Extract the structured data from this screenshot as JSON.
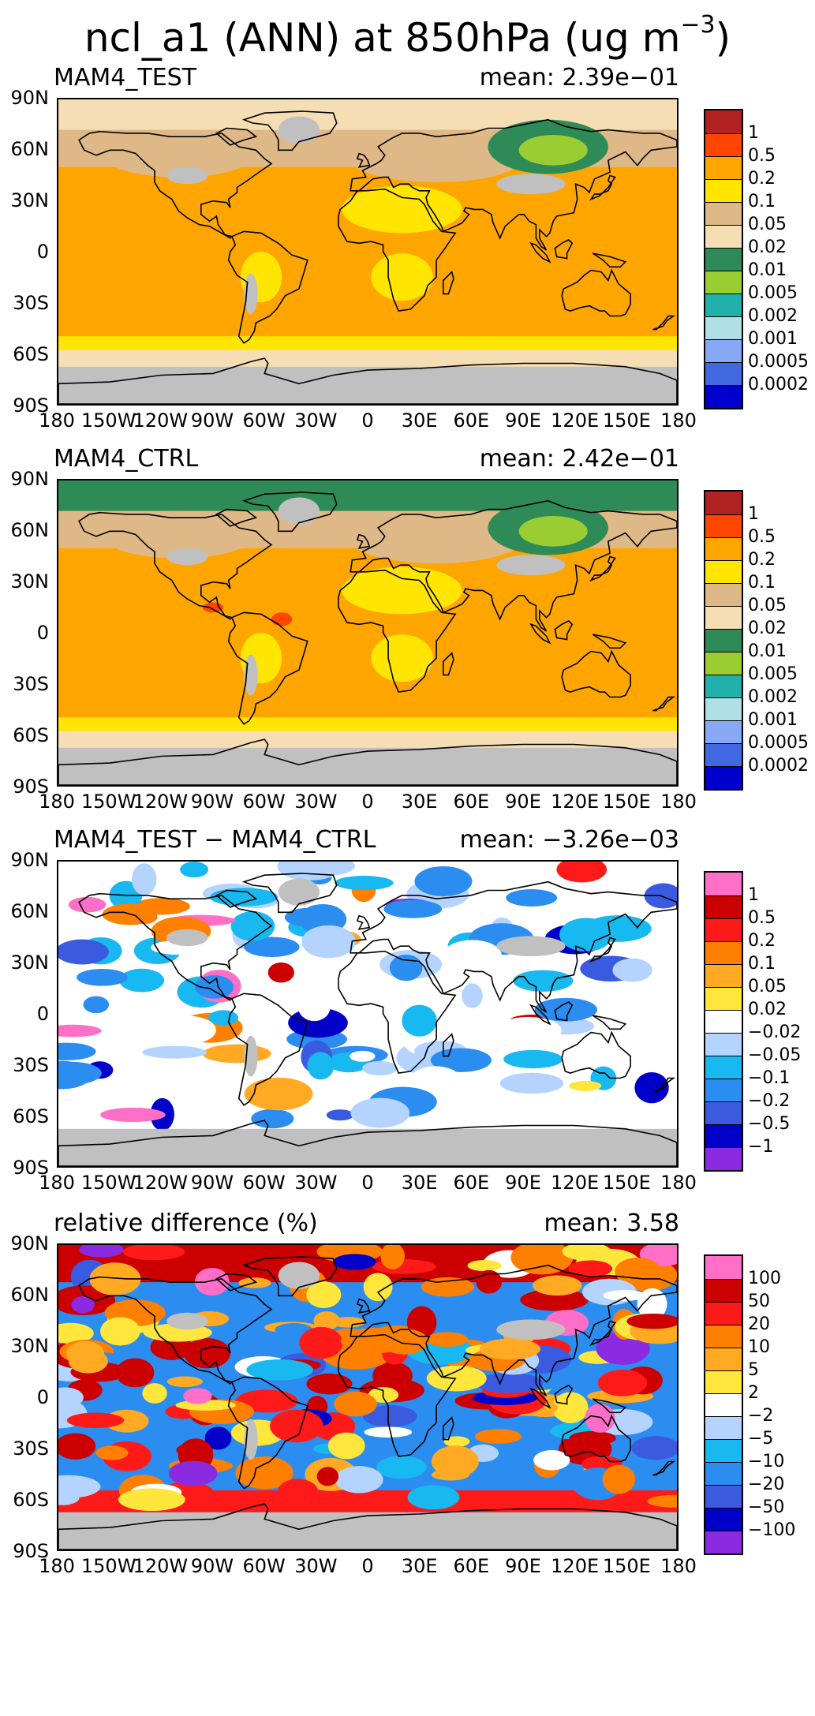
{
  "title": {
    "main": "ncl_a1 (ANN) at 850hPa (ug m",
    "superscript": "−3",
    "close": ")"
  },
  "axes": {
    "lat_labels": [
      "90N",
      "60N",
      "30N",
      "0",
      "30S",
      "60S",
      "90S"
    ],
    "lon_labels": [
      "180",
      "150W",
      "120W",
      "90W",
      "60W",
      "30W",
      "0",
      "30E",
      "60E",
      "90E",
      "120E",
      "150E",
      "180"
    ]
  },
  "panels": [
    {
      "name": "MAM4_TEST",
      "mean_label": "mean:",
      "mean_value": "2.39e−01",
      "map_type": "absolute-test",
      "colorbar": {
        "colors": [
          "#b22222",
          "#ff4500",
          "#ffa500",
          "#ffe500",
          "#deb887",
          "#f5deb3",
          "#2e8b57",
          "#9acd32",
          "#20b2aa",
          "#b0e0e6",
          "#87a9f5",
          "#4169e1",
          "#0000cd"
        ],
        "labels": [
          "1",
          "0.5",
          "0.2",
          "0.1",
          "0.05",
          "0.02",
          "0.01",
          "0.005",
          "0.002",
          "0.001",
          "0.0005",
          "0.0002"
        ]
      }
    },
    {
      "name": "MAM4_CTRL",
      "mean_label": "mean:",
      "mean_value": "2.42e−01",
      "map_type": "absolute-ctrl",
      "colorbar": {
        "colors": [
          "#b22222",
          "#ff4500",
          "#ffa500",
          "#ffe500",
          "#deb887",
          "#f5deb3",
          "#2e8b57",
          "#9acd32",
          "#20b2aa",
          "#b0e0e6",
          "#87a9f5",
          "#4169e1",
          "#0000cd"
        ],
        "labels": [
          "1",
          "0.5",
          "0.2",
          "0.1",
          "0.05",
          "0.02",
          "0.01",
          "0.005",
          "0.002",
          "0.001",
          "0.0005",
          "0.0002"
        ]
      }
    },
    {
      "name": "MAM4_TEST − MAM4_CTRL",
      "mean_label": "mean:",
      "mean_value": "−3.26e−03",
      "map_type": "difference",
      "colorbar": {
        "colors": [
          "#ff6ec7",
          "#cc0000",
          "#ff1a1a",
          "#ff7f00",
          "#ffaa22",
          "#ffe63c",
          "#ffffff",
          "#b4d4ff",
          "#18b8f0",
          "#2c8df0",
          "#3a5ae0",
          "#0000c8",
          "#8a2be2"
        ],
        "labels": [
          "1",
          "0.5",
          "0.2",
          "0.1",
          "0.05",
          "0.02",
          "−0.02",
          "−0.05",
          "−0.1",
          "−0.2",
          "−0.5",
          "−1"
        ]
      }
    },
    {
      "name": "relative difference (%)",
      "mean_label": "mean:",
      "mean_value": "3.58",
      "map_type": "relative",
      "colorbar": {
        "colors": [
          "#ff6ec7",
          "#cc0000",
          "#ff1a1a",
          "#ff7f00",
          "#ffaa22",
          "#ffe63c",
          "#ffffff",
          "#b4d4ff",
          "#18b8f0",
          "#2c8df0",
          "#3a5ae0",
          "#0000c8",
          "#8a2be2"
        ],
        "labels": [
          "100",
          "50",
          "20",
          "10",
          "5",
          "2",
          "−2",
          "−5",
          "−10",
          "−20",
          "−50",
          "−100"
        ]
      }
    }
  ]
}
